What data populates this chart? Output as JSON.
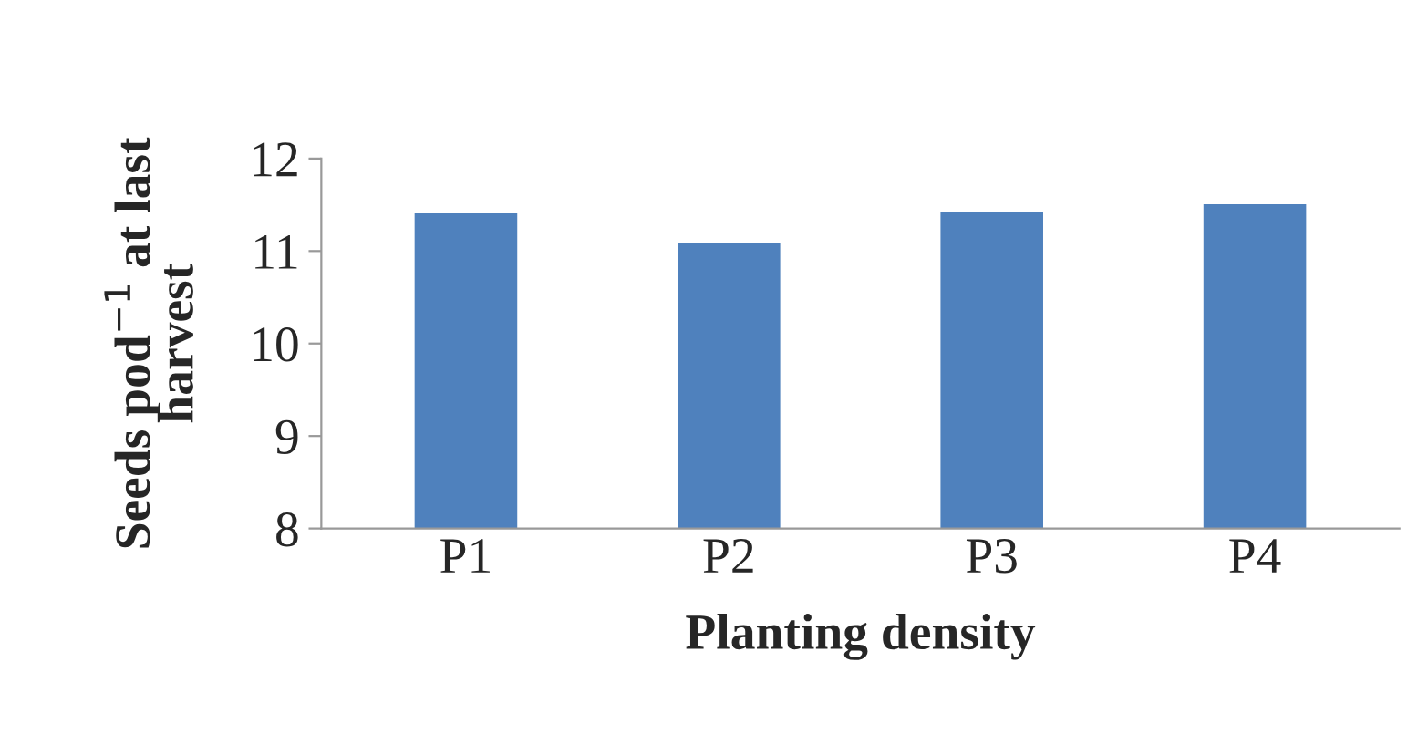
{
  "chart_data": {
    "type": "bar",
    "xlabel": "Planting density",
    "ylabel": "Seeds pod$^{−1}$ at last\nharvest",
    "categories": [
      "P1",
      "P2",
      "P3",
      "P4"
    ],
    "values": [
      11.42,
      11.1,
      11.43,
      11.52
    ],
    "color": "#4f81bd",
    "ylim": [
      8,
      12
    ],
    "yticks": [
      8,
      9,
      10,
      11,
      12
    ],
    "grid": false
  }
}
